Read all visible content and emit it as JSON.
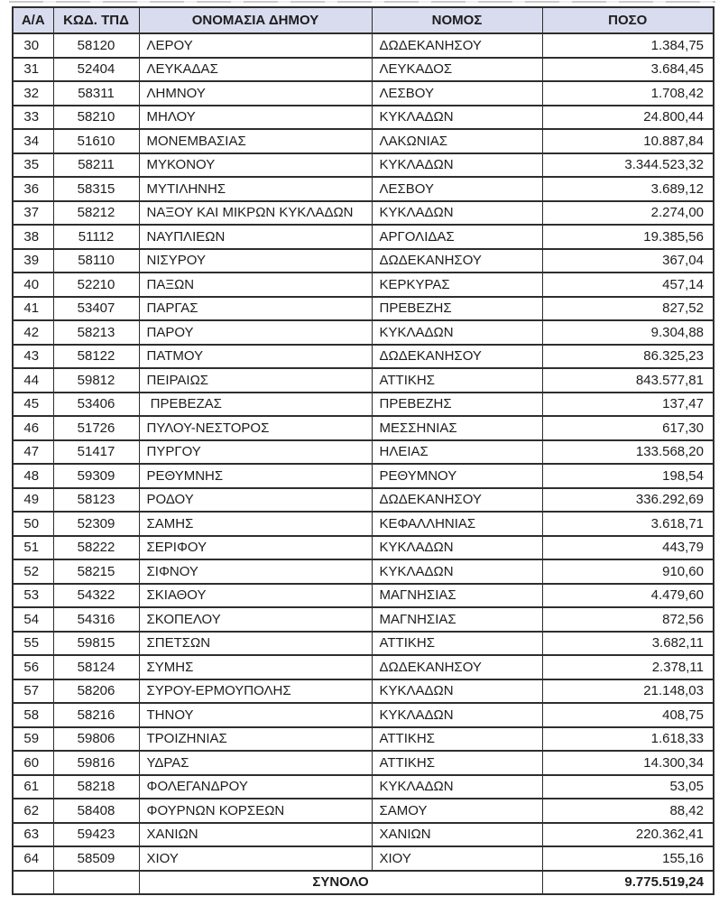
{
  "page": {
    "background": "#ffffff",
    "description_note": "Scanned table page listing Greek municipalities with TPD codes, prefectures and amounts"
  },
  "table": {
    "style": {
      "header_bg": "#d8dcee",
      "border_color": "#2e2e2e",
      "text_color": "#1d1d1d"
    },
    "columns": [
      {
        "key": "aa",
        "label": "Α/Α"
      },
      {
        "key": "code",
        "label": "ΚΩΔ. ΤΠΔ"
      },
      {
        "key": "name",
        "label": "ΟΝΟΜΑΣΙΑ ΔΗΜΟΥ"
      },
      {
        "key": "nomos",
        "label": "ΝΟΜΟΣ"
      },
      {
        "key": "amount",
        "label": "ΠΟΣΟ"
      }
    ],
    "rows": [
      {
        "aa": "30",
        "code": "58120",
        "name": "ΛΕΡΟΥ",
        "nomos": "ΔΩΔΕΚΑΝΗΣΟΥ",
        "amount": "1.384,75"
      },
      {
        "aa": "31",
        "code": "52404",
        "name": "ΛΕΥΚΑΔΑΣ",
        "nomos": "ΛΕΥΚΑΔΟΣ",
        "amount": "3.684,45"
      },
      {
        "aa": "32",
        "code": "58311",
        "name": "ΛΗΜΝΟΥ",
        "nomos": "ΛΕΣΒΟΥ",
        "amount": "1.708,42"
      },
      {
        "aa": "33",
        "code": "58210",
        "name": "ΜΗΛΟΥ",
        "nomos": "ΚΥΚΛΑΔΩΝ",
        "amount": "24.800,44"
      },
      {
        "aa": "34",
        "code": "51610",
        "name": "ΜΟΝΕΜΒΑΣΙΑΣ",
        "nomos": "ΛΑΚΩΝΙΑΣ",
        "amount": "10.887,84"
      },
      {
        "aa": "35",
        "code": "58211",
        "name": "ΜΥΚΟΝΟΥ",
        "nomos": "ΚΥΚΛΑΔΩΝ",
        "amount": "3.344.523,32"
      },
      {
        "aa": "36",
        "code": "58315",
        "name": "ΜΥΤΙΛΗΝΗΣ",
        "nomos": "ΛΕΣΒΟΥ",
        "amount": "3.689,12"
      },
      {
        "aa": "37",
        "code": "58212",
        "name": "ΝΑΞΟΥ ΚΑΙ ΜΙΚΡΩΝ ΚΥΚΛΑΔΩΝ",
        "nomos": "ΚΥΚΛΑΔΩΝ",
        "amount": "2.274,00"
      },
      {
        "aa": "38",
        "code": "51112",
        "name": "ΝΑΥΠΛΙΕΩΝ",
        "nomos": "ΑΡΓΟΛΙΔΑΣ",
        "amount": "19.385,56"
      },
      {
        "aa": "39",
        "code": "58110",
        "name": "ΝΙΣΥΡΟΥ",
        "nomos": "ΔΩΔΕΚΑΝΗΣΟΥ",
        "amount": "367,04"
      },
      {
        "aa": "40",
        "code": "52210",
        "name": "ΠΑΞΩΝ",
        "nomos": "ΚΕΡΚΥΡΑΣ",
        "amount": "457,14"
      },
      {
        "aa": "41",
        "code": "53407",
        "name": "ΠΑΡΓΑΣ",
        "nomos": "ΠΡΕΒΕΖΗΣ",
        "amount": "827,52"
      },
      {
        "aa": "42",
        "code": "58213",
        "name": "ΠΑΡΟΥ",
        "nomos": "ΚΥΚΛΑΔΩΝ",
        "amount": "9.304,88"
      },
      {
        "aa": "43",
        "code": "58122",
        "name": "ΠΑΤΜΟΥ",
        "nomos": "ΔΩΔΕΚΑΝΗΣΟΥ",
        "amount": "86.325,23"
      },
      {
        "aa": "44",
        "code": "59812",
        "name": "ΠΕΙΡΑΙΩΣ",
        "nomos": "ΑΤΤΙΚΗΣ",
        "amount": "843.577,81"
      },
      {
        "aa": "45",
        "code": "53406",
        "name": " ΠΡΕΒΕΖΑΣ",
        "nomos": "ΠΡΕΒΕΖΗΣ",
        "amount": "137,47"
      },
      {
        "aa": "46",
        "code": "51726",
        "name": "ΠΥΛΟΥ-ΝΕΣΤΟΡΟΣ",
        "nomos": "ΜΕΣΣΗΝΙΑΣ",
        "amount": "617,30"
      },
      {
        "aa": "47",
        "code": "51417",
        "name": "ΠΥΡΓΟΥ",
        "nomos": "ΗΛΕΙΑΣ",
        "amount": "133.568,20"
      },
      {
        "aa": "48",
        "code": "59309",
        "name": "ΡΕΘΥΜΝΗΣ",
        "nomos": "ΡΕΘΥΜΝΟΥ",
        "amount": "198,54"
      },
      {
        "aa": "49",
        "code": "58123",
        "name": "ΡΟΔΟΥ",
        "nomos": "ΔΩΔΕΚΑΝΗΣΟΥ",
        "amount": "336.292,69"
      },
      {
        "aa": "50",
        "code": "52309",
        "name": "ΣΑΜΗΣ",
        "nomos": "ΚΕΦΑΛΛΗΝΙΑΣ",
        "amount": "3.618,71"
      },
      {
        "aa": "51",
        "code": "58222",
        "name": "ΣΕΡΙΦΟΥ",
        "nomos": "ΚΥΚΛΑΔΩΝ",
        "amount": "443,79"
      },
      {
        "aa": "52",
        "code": "58215",
        "name": "ΣΙΦΝΟΥ",
        "nomos": "ΚΥΚΛΑΔΩΝ",
        "amount": "910,60"
      },
      {
        "aa": "53",
        "code": "54322",
        "name": "ΣΚΙΑΘΟΥ",
        "nomos": "ΜΑΓΝΗΣΙΑΣ",
        "amount": "4.479,60"
      },
      {
        "aa": "54",
        "code": "54316",
        "name": "ΣΚΟΠΕΛΟΥ",
        "nomos": "ΜΑΓΝΗΣΙΑΣ",
        "amount": "872,56"
      },
      {
        "aa": "55",
        "code": "59815",
        "name": "ΣΠΕΤΣΩΝ",
        "nomos": "ΑΤΤΙΚΗΣ",
        "amount": "3.682,11"
      },
      {
        "aa": "56",
        "code": "58124",
        "name": "ΣΥΜΗΣ",
        "nomos": "ΔΩΔΕΚΑΝΗΣΟΥ",
        "amount": "2.378,11"
      },
      {
        "aa": "57",
        "code": "58206",
        "name": "ΣΥΡΟΥ-ΕΡΜΟΥΠΟΛΗΣ",
        "nomos": "ΚΥΚΛΑΔΩΝ",
        "amount": "21.148,03"
      },
      {
        "aa": "58",
        "code": "58216",
        "name": "ΤΗΝΟΥ",
        "nomos": "ΚΥΚΛΑΔΩΝ",
        "amount": "408,75"
      },
      {
        "aa": "59",
        "code": "59806",
        "name": "ΤΡΟΙΖΗΝΙΑΣ",
        "nomos": "ΑΤΤΙΚΗΣ",
        "amount": "1.618,33"
      },
      {
        "aa": "60",
        "code": "59816",
        "name": "ΥΔΡΑΣ",
        "nomos": "ΑΤΤΙΚΗΣ",
        "amount": "14.300,34"
      },
      {
        "aa": "61",
        "code": "58218",
        "name": "ΦΟΛΕΓΑΝΔΡΟΥ",
        "nomos": "ΚΥΚΛΑΔΩΝ",
        "amount": "53,05"
      },
      {
        "aa": "62",
        "code": "58408",
        "name": "ΦΟΥΡΝΩΝ ΚΟΡΣΕΩΝ",
        "nomos": "ΣΑΜΟΥ",
        "amount": "88,42"
      },
      {
        "aa": "63",
        "code": "59423",
        "name": "ΧΑΝΙΩΝ",
        "nomos": "ΧΑΝΙΩΝ",
        "amount": "220.362,41"
      },
      {
        "aa": "64",
        "code": "58509",
        "name": "ΧΙΟΥ",
        "nomos": "ΧΙΟΥ",
        "amount": "155,16"
      }
    ],
    "total": {
      "label": "ΣΥΝΟΛΟ",
      "amount": "9.775.519,24"
    }
  }
}
